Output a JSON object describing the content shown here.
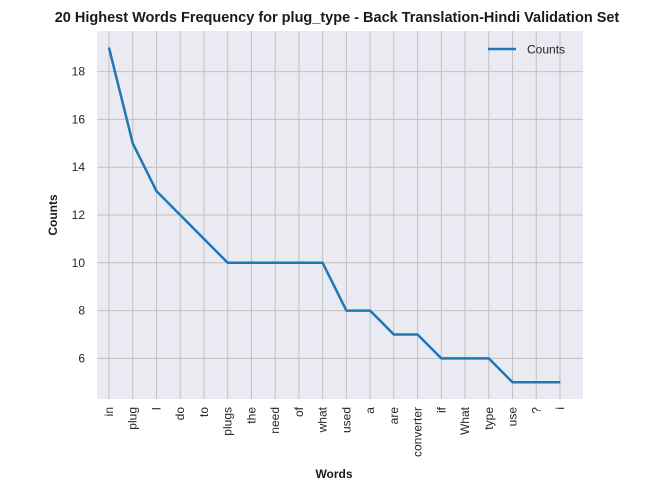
{
  "chart_data": {
    "type": "line",
    "title": "20 Highest Words Frequency for plug_type - Back Translation-Hindi Validation Set",
    "xlabel": "Words",
    "ylabel": "Counts",
    "categories": [
      "in",
      "plug",
      "I",
      "do",
      "to",
      "plugs",
      "the",
      "need",
      "of",
      "what",
      "used",
      "a",
      "are",
      "converter",
      "if",
      "What",
      "type",
      "use",
      "?",
      "i"
    ],
    "series": [
      {
        "name": "Counts",
        "values": [
          19,
          15,
          13,
          12,
          11,
          10,
          10,
          10,
          10,
          10,
          8,
          8,
          7,
          7,
          6,
          6,
          6,
          5,
          5,
          5
        ]
      }
    ],
    "ylim": [
      4.3,
      19.7
    ],
    "yticks": [
      6,
      8,
      10,
      12,
      14,
      16,
      18
    ],
    "grid": true,
    "legend_position": "top-right",
    "colors": {
      "line": "#1f77b4",
      "plot_background": "#eaeaf2",
      "grid": "#c0c0c0"
    }
  }
}
